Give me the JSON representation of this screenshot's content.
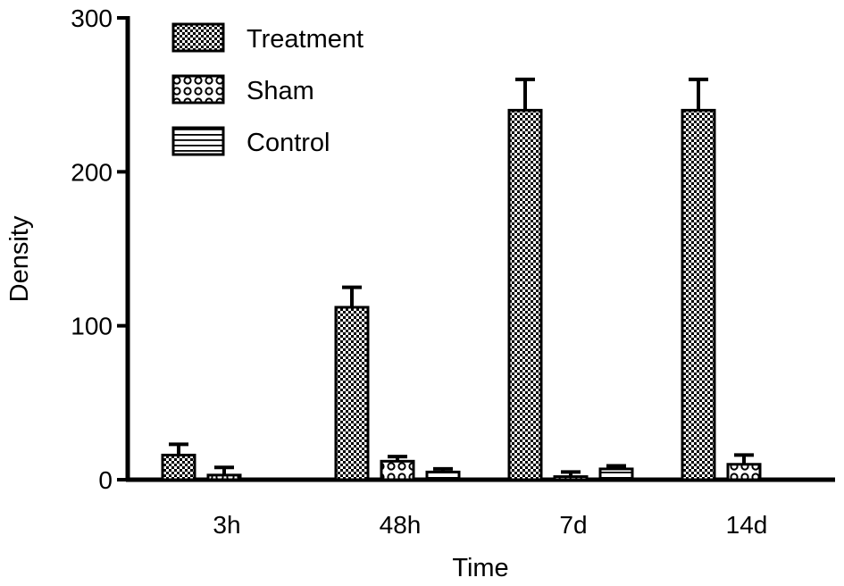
{
  "chart_data": {
    "type": "bar",
    "title": "",
    "xlabel": "Time",
    "ylabel": "Density",
    "categories": [
      "3h",
      "48h",
      "7d",
      "14d"
    ],
    "ylim": [
      0,
      300
    ],
    "yticks": [
      0,
      100,
      200,
      300
    ],
    "series": [
      {
        "name": "Treatment",
        "pattern": "checker",
        "values": [
          16,
          112,
          240,
          240
        ],
        "errors": [
          7,
          13,
          20,
          20
        ]
      },
      {
        "name": "Sham",
        "pattern": "circles",
        "values": [
          3,
          12,
          2,
          10
        ],
        "errors": [
          5,
          3,
          3,
          6
        ]
      },
      {
        "name": "Control",
        "pattern": "stripes",
        "values": [
          null,
          5,
          7,
          null
        ],
        "errors": [
          null,
          2,
          2,
          null
        ]
      }
    ],
    "legend_position": "top-left",
    "grid": false,
    "colors": {
      "bar_fill": "#ffffff",
      "bar_stroke": "#000000",
      "pattern_ink": "#000000"
    }
  }
}
